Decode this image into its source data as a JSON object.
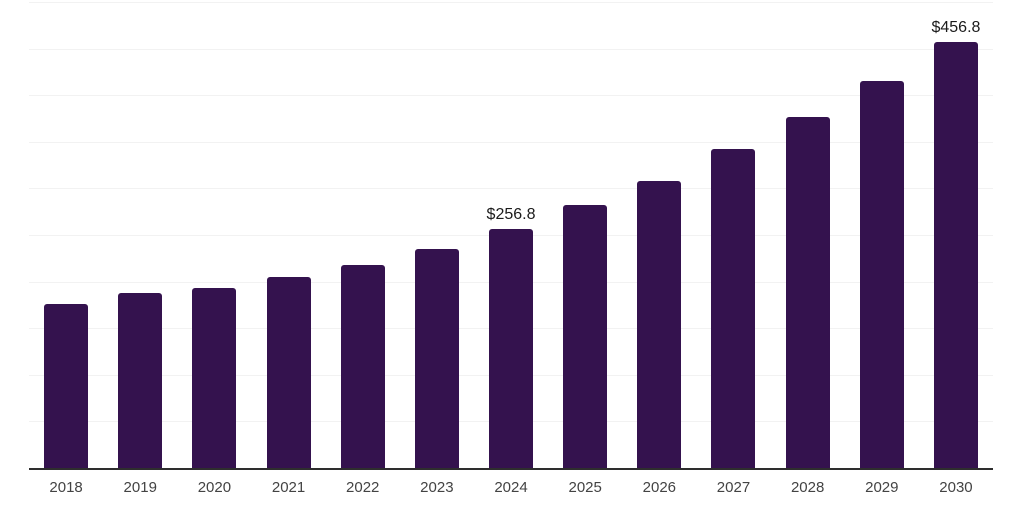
{
  "chart": {
    "background_color": "#ffffff",
    "bar_color": "#34124e",
    "grid_color": "#f2f2f2",
    "axis_color": "#2e2e2e",
    "tick_label_color": "#434343",
    "data_label_color": "#1b1b1b"
  },
  "chart_data": {
    "type": "bar",
    "title": "",
    "xlabel": "",
    "ylabel": "",
    "categories": [
      "2018",
      "2019",
      "2020",
      "2021",
      "2022",
      "2023",
      "2024",
      "2025",
      "2026",
      "2027",
      "2028",
      "2029",
      "2030"
    ],
    "values": [
      176.0,
      187.5,
      193.4,
      205.1,
      217.9,
      234.8,
      256.8,
      282.7,
      308.3,
      342.1,
      376.8,
      415.2,
      456.8
    ],
    "value_labels": {
      "2024": "$256.8",
      "2030": "$456.8"
    },
    "ylim": [
      0,
      500
    ],
    "grid_step": 50,
    "grid": true,
    "legend_position": "none",
    "y_axis_labels_visible": false,
    "currency_prefix": "$"
  }
}
